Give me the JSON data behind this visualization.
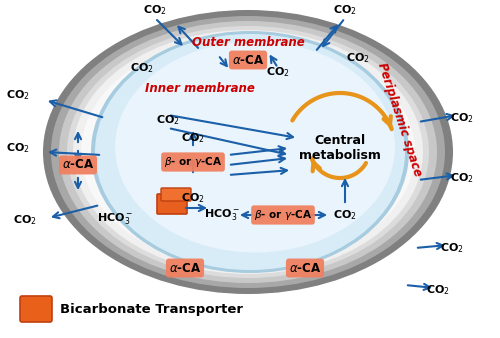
{
  "bg_color": "#ffffff",
  "arrow_color": "#1a5fa8",
  "label_bg": "#f08060",
  "label_text": "#000000",
  "outer_membrane_text": "Outer membrane",
  "inner_membrane_text": "Inner membrane",
  "periplasmic_text": "Periplasmic space",
  "label_color": "#cc0000",
  "central_metabolism_text": "Central\nmetabolism",
  "central_color": "#e8941a",
  "bicarbonate_transporter_text": "Bicarbonate Transporter",
  "transporter_color": "#e8601a",
  "outer_shell_colors": [
    "#888888",
    "#b0b0b0",
    "#d0d0d0",
    "#e8e8e8",
    "#f5f5f5"
  ],
  "inner_blue_color": "#c8e4f5",
  "inner_blue_edge": "#9bbdd4"
}
